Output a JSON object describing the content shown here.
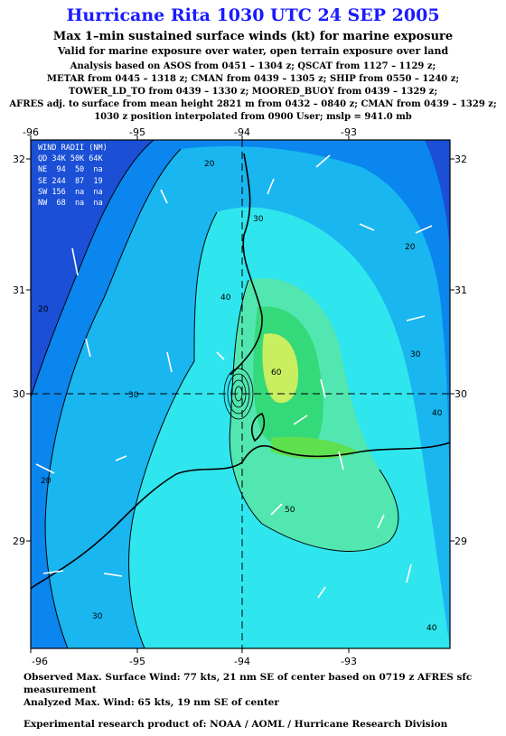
{
  "header": {
    "title": "Hurricane Rita 1030 UTC 24 SEP 2005",
    "subtitle": "Max 1–min sustained surface winds (kt) for marine exposure",
    "subtitle2": "Valid for marine exposure over water, open terrain exposure over land"
  },
  "analysis_lines": [
    "Analysis based on  ASOS from 0451 – 1304 z;  QSCAT from 1127 – 1129 z;",
    "METAR from 0445 – 1318 z;  CMAN from 0439 – 1305 z;  SHIP from 0550 – 1240 z;",
    "TOWER_LD_TO from 0439 – 1330 z;  MOORED_BUOY from 0439 – 1329 z;",
    "AFRES adj. to surface from mean height 2821 m from 0432 – 0840 z;  CMAN from 0439 – 1329 z;",
    "1030 z position interpolated from 0900 User; mslp = 941.0 mb"
  ],
  "map": {
    "lon_labels": [
      "-96",
      "-95",
      "-94",
      "-93"
    ],
    "lat_labels": [
      "32",
      "31",
      "30",
      "29"
    ],
    "contour_labels": [
      "20",
      "20",
      "20",
      "20",
      "30",
      "30",
      "30",
      "30",
      "40",
      "40",
      "40",
      "50",
      "60"
    ],
    "colors": {
      "blue_10": "#1a4fd6",
      "blue_20": "#0a86ee",
      "cyan_30": "#19b6f0",
      "cyan_40": "#2fe6ee",
      "green_50": "#52e6b0",
      "green_60": "#34d97a",
      "green_70": "#5ee04f",
      "yellow_80": "#c9ee60"
    }
  },
  "wind_radii": {
    "header": "WIND RADII (NM)",
    "cols": "QD 34K 50K 64K",
    "rows": [
      "NE  94  50  na",
      "SE 244  87  19",
      "SW 156  na  na",
      "NW  68  na  na"
    ]
  },
  "footer": {
    "observed": "Observed Max. Surface Wind: 77 kts, 21 nm SE of center based on 0719 z AFRES sfc measurement",
    "analyzed": "Analyzed Max. Wind: 65 kts, 19 nm SE of center",
    "credit": "Experimental research product of:  NOAA / AOML / Hurricane Research Division"
  }
}
